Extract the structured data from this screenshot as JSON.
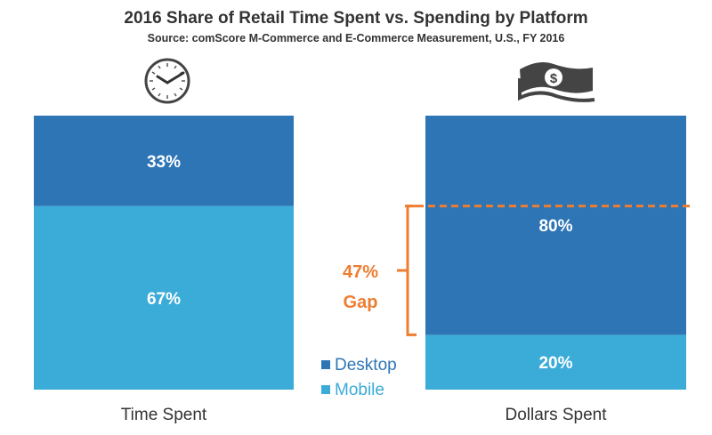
{
  "chart_data": {
    "type": "bar",
    "stacked": true,
    "title": "2016 Share of Retail Time Spent vs. Spending by Platform",
    "subtitle": "Source: comScore M-Commerce and E-Commerce Measurement, U.S., FY 2016",
    "categories": [
      "Time Spent",
      "Dollars Spent"
    ],
    "category_icons": [
      "clock-icon",
      "money-icon"
    ],
    "series": [
      {
        "name": "Desktop",
        "values": [
          33,
          80
        ],
        "labels": [
          "33%",
          "80%"
        ],
        "color": "#2e75b6"
      },
      {
        "name": "Mobile",
        "values": [
          67,
          20
        ],
        "labels": [
          "67%",
          "20%"
        ],
        "color": "#3babd8"
      }
    ],
    "ylim": [
      0,
      100
    ],
    "grid": false,
    "legend_placement": "bottom-center",
    "annotation": {
      "value": "47%",
      "label": "Gap",
      "color": "#ed7d31"
    }
  }
}
